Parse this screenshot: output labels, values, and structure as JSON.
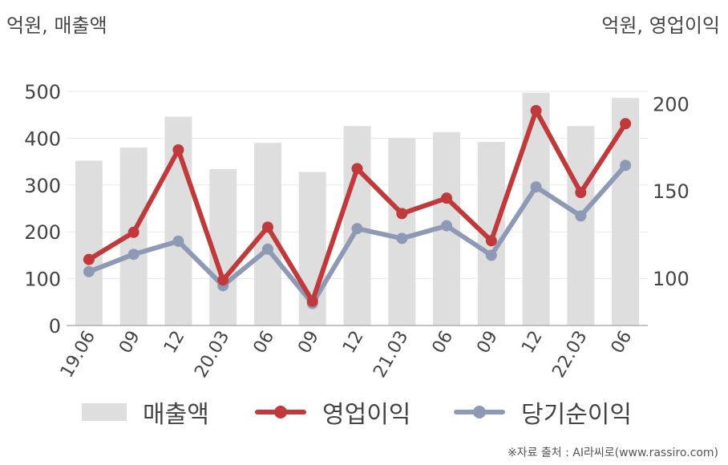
{
  "header": {
    "left_unit": "억원, 매출액",
    "right_unit": "억원, 영업이익"
  },
  "source": "※자료 출처 : AI라씨로(www.rassiro.com)",
  "colors": {
    "bar": "#dedede",
    "operating_profit": "#c0393b",
    "net_income": "#8e9ab5",
    "grid": "#e8e8e8",
    "axis": "#b0b0b0",
    "text": "#444444"
  },
  "chart_data": {
    "type": "bar+line",
    "categories": [
      "19.06",
      "09",
      "12",
      "20.03",
      "06",
      "09",
      "12",
      "21.03",
      "06",
      "09",
      "12",
      "22.03",
      "06"
    ],
    "left_axis": {
      "title": "억원, 매출액",
      "ylim": [
        0,
        500
      ],
      "ticks": [
        0,
        100,
        200,
        300,
        400,
        500
      ]
    },
    "right_axis": {
      "title": "억원, 영업이익",
      "ylim": [
        73,
        207
      ],
      "ticks": [
        100,
        150,
        200
      ]
    },
    "series": [
      {
        "name": "매출액",
        "type": "bar",
        "axis": "left",
        "values": [
          352,
          380,
          446,
          334,
          390,
          328,
          426,
          400,
          413,
          392,
          497,
          426,
          486
        ]
      },
      {
        "name": "영업이익",
        "type": "line",
        "axis": "left",
        "values": [
          141,
          199,
          375,
          97,
          210,
          52,
          335,
          239,
          272,
          181,
          459,
          284,
          431
        ]
      },
      {
        "name": "당기순이익",
        "type": "line",
        "axis": "left",
        "values": [
          115,
          152,
          180,
          85,
          163,
          47,
          207,
          186,
          213,
          150,
          296,
          234,
          342
        ]
      }
    ],
    "grid": true,
    "legend_position": "bottom"
  },
  "legend": [
    {
      "label": "매출액"
    },
    {
      "label": "영업이익"
    },
    {
      "label": "당기순이익"
    }
  ]
}
